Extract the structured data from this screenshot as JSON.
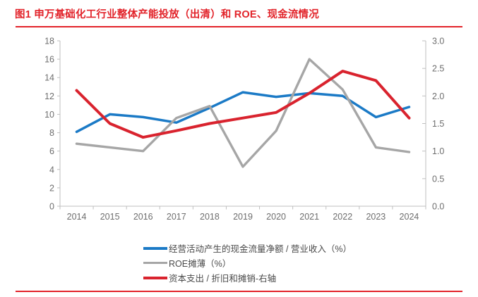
{
  "header": {
    "title": "图1  申万基础化工行业整体产能投放（出清）和 ROE、现金流情况"
  },
  "colors": {
    "accent_red": "#e2232a",
    "line_blue": "#1b7ac6",
    "line_gray": "#a6a6a6",
    "line_red": "#d9232e",
    "axis_line": "#bfbfbf",
    "tick_text": "#6e6e6e",
    "legend_text": "#4a4a4a"
  },
  "chart_data": {
    "type": "line",
    "title": "申万基础化工行业整体产能投放（出清）和 ROE、现金流情况",
    "categories": [
      "2014",
      "2015",
      "2016",
      "2017",
      "2018",
      "2019",
      "2020",
      "2021",
      "2022",
      "2023",
      "2024"
    ],
    "series": [
      {
        "name": "经营活动产生的现金流量净额 / 营业收入（%）",
        "axis": "left",
        "color": "#1b7ac6",
        "values": [
          8.1,
          10.0,
          9.7,
          9.1,
          10.7,
          12.4,
          11.9,
          12.3,
          12.0,
          9.7,
          10.8
        ]
      },
      {
        "name": "ROE摊薄（%）",
        "axis": "left",
        "color": "#a6a6a6",
        "values": [
          6.8,
          6.4,
          6.0,
          9.6,
          10.9,
          4.3,
          8.2,
          16.0,
          12.7,
          6.4,
          5.9
        ]
      },
      {
        "name": "资本支出 / 折旧和摊销-右轴",
        "axis": "right",
        "color": "#d9232e",
        "values": [
          2.1,
          1.5,
          1.25,
          1.37,
          1.5,
          1.6,
          1.7,
          2.05,
          2.45,
          2.28,
          1.6
        ]
      }
    ],
    "left_axis": {
      "min": 0,
      "max": 18,
      "step": 2,
      "tick_labels": [
        "0",
        "2",
        "4",
        "6",
        "8",
        "10",
        "12",
        "14",
        "16",
        "18"
      ]
    },
    "right_axis": {
      "min": 0,
      "max": 3,
      "step": 0.5,
      "tick_labels": [
        "0.0",
        "0.5",
        "1.0",
        "1.5",
        "2.0",
        "2.5",
        "3.0"
      ]
    },
    "grid": false,
    "legend_position": "bottom"
  }
}
